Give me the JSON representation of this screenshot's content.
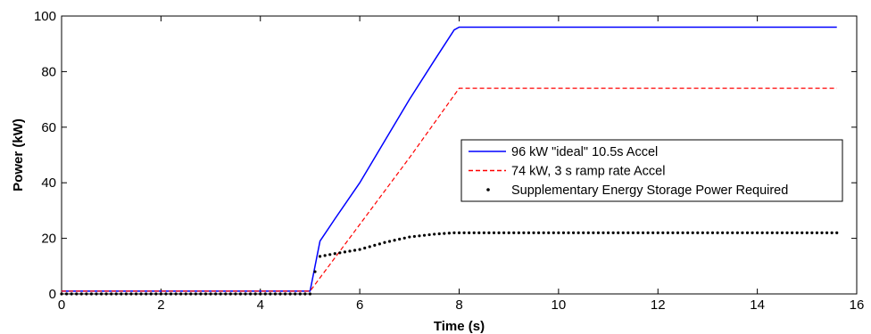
{
  "chart_data": {
    "type": "line",
    "title": "",
    "xlabel": "Time (s)",
    "ylabel": "Power (kW)",
    "xlim": [
      0,
      16
    ],
    "ylim": [
      0,
      100
    ],
    "xticks": [
      0,
      2,
      4,
      6,
      8,
      10,
      12,
      14,
      16
    ],
    "yticks": [
      0,
      20,
      40,
      60,
      80,
      100
    ],
    "grid": false,
    "legend_position": "center-right",
    "series": [
      {
        "name": "96 kW \"ideal\" 10.5s Accel",
        "style": "solid",
        "color": "#0000ff",
        "x": [
          0,
          5.0,
          5.2,
          5.5,
          6.0,
          6.5,
          7.0,
          7.5,
          7.9,
          8.0,
          10.0,
          12.0,
          14.0,
          15.6
        ],
        "y": [
          1,
          1,
          19,
          27,
          40,
          55,
          70,
          84,
          95,
          96,
          96,
          96,
          96,
          96
        ]
      },
      {
        "name": "74 kW, 3 s ramp rate Accel",
        "style": "dashed",
        "color": "#ff0000",
        "x": [
          0,
          5.0,
          6.0,
          7.0,
          8.0,
          10.0,
          12.0,
          14.0,
          15.6
        ],
        "y": [
          1,
          1,
          25,
          49,
          74,
          74,
          74,
          74,
          74
        ]
      },
      {
        "name": "Supplementary Energy Storage Power Required",
        "style": "dotted-markers",
        "color": "#000000",
        "x": [
          0,
          5.0,
          5.1,
          5.2,
          5.5,
          6.0,
          6.5,
          7.0,
          7.5,
          7.9,
          8.0,
          10.0,
          12.0,
          14.0,
          15.6
        ],
        "y": [
          0,
          0,
          8,
          13.5,
          14.5,
          16,
          18.5,
          20.5,
          21.5,
          22,
          22,
          22,
          22,
          22,
          22
        ]
      }
    ]
  }
}
